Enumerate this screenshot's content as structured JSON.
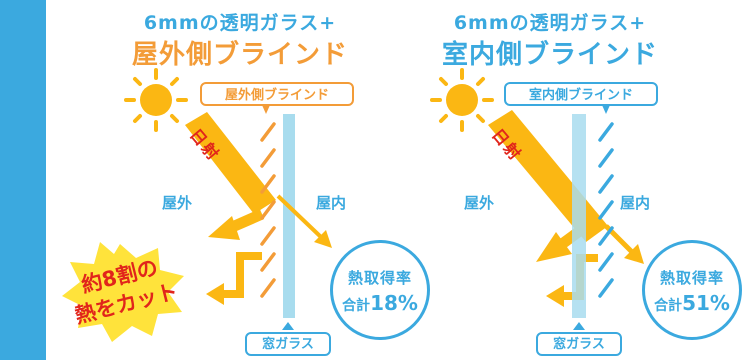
{
  "colors": {
    "stripe": "#3ba9df",
    "glass": "#a8dcee",
    "beam": "#fbb713",
    "outside_accent": "#f39c38",
    "inside_accent": "#3ba9df",
    "burst_fill": "#ffe33b",
    "burst_text": "#e1251b"
  },
  "panels": [
    {
      "title_line1": "6mmの透明ガラス+",
      "title_line2": "屋外側ブラインド",
      "blind_label": "屋外側ブラインド",
      "sunlight_label": "日射",
      "outside_label": "屋外",
      "inside_label": "屋内",
      "glass_label": "窓ガラス",
      "result_label": "熱取得率",
      "result_prefix": "合計",
      "result_value": "18%"
    },
    {
      "title_line1": "6mmの透明ガラス+",
      "title_line2": "室内側ブラインド",
      "blind_label": "室内側ブラインド",
      "sunlight_label": "日射",
      "outside_label": "屋外",
      "inside_label": "屋内",
      "glass_label": "窓ガラス",
      "result_label": "熱取得率",
      "result_prefix": "合計",
      "result_value": "51%"
    }
  ],
  "burst": {
    "line1": "約8割の",
    "line2": "熱をカット"
  }
}
